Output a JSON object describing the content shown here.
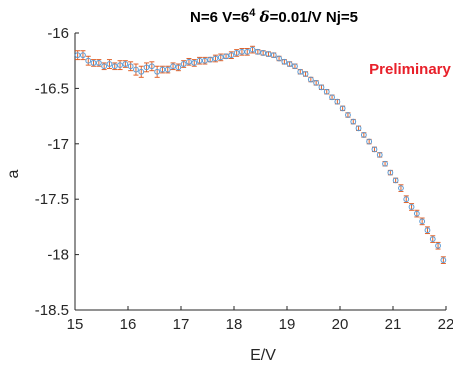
{
  "chart_data": {
    "type": "scatter",
    "title_parts": [
      "N=6 V=6",
      "4",
      " ",
      "δ",
      "=0.01/V Nj=5"
    ],
    "xlabel": "E/V",
    "ylabel": "a",
    "xlim": [
      15,
      22
    ],
    "ylim": [
      -18.5,
      -16
    ],
    "xticks": [
      "15",
      "16",
      "17",
      "18",
      "19",
      "20",
      "21",
      "22"
    ],
    "yticks": [
      "-16",
      "-16.5",
      "-17",
      "-17.5",
      "-18",
      "-18.5"
    ],
    "annotation": "Preliminary",
    "grid": false,
    "colors": {
      "marker_edge": "#5b9bd5",
      "errorbar": "#e0622a",
      "annotation": "#e8202a",
      "axis": "#262626"
    },
    "series": [
      {
        "x": [
          15.05,
          15.15,
          15.25,
          15.35,
          15.45,
          15.55,
          15.65,
          15.75,
          15.85,
          15.95,
          16.05,
          16.15,
          16.25,
          16.35,
          16.45,
          16.55,
          16.65,
          16.75,
          16.85,
          16.95,
          17.05,
          17.15,
          17.25,
          17.35,
          17.45,
          17.55,
          17.65,
          17.75,
          17.85,
          17.95,
          18.05,
          18.15,
          18.25,
          18.35,
          18.45,
          18.55,
          18.65,
          18.75,
          18.85,
          18.95,
          19.05,
          19.15,
          19.25,
          19.35,
          19.45,
          19.55,
          19.65,
          19.75,
          19.85,
          19.95,
          20.05,
          20.15,
          20.25,
          20.35,
          20.45,
          20.55,
          20.65,
          20.75,
          20.85,
          20.95,
          21.05,
          21.15,
          21.25,
          21.35,
          21.45,
          21.55,
          21.65,
          21.75,
          21.85,
          21.95
        ],
        "y": [
          -16.2,
          -16.2,
          -16.25,
          -16.27,
          -16.27,
          -16.3,
          -16.28,
          -16.3,
          -16.29,
          -16.28,
          -16.3,
          -16.33,
          -16.35,
          -16.31,
          -16.3,
          -16.35,
          -16.33,
          -16.33,
          -16.3,
          -16.31,
          -16.28,
          -16.26,
          -16.27,
          -16.25,
          -16.25,
          -16.24,
          -16.23,
          -16.22,
          -16.21,
          -16.2,
          -16.18,
          -16.17,
          -16.17,
          -16.15,
          -16.17,
          -16.18,
          -16.19,
          -16.2,
          -16.23,
          -16.26,
          -16.28,
          -16.3,
          -16.35,
          -16.37,
          -16.42,
          -16.45,
          -16.49,
          -16.53,
          -16.58,
          -16.62,
          -16.68,
          -16.74,
          -16.8,
          -16.86,
          -16.92,
          -16.98,
          -17.05,
          -17.1,
          -17.18,
          -17.26,
          -17.33,
          -17.4,
          -17.5,
          -17.57,
          -17.63,
          -17.7,
          -17.78,
          -17.86,
          -17.92,
          -18.05
        ],
        "err": [
          0.04,
          0.04,
          0.04,
          0.03,
          0.03,
          0.03,
          0.04,
          0.03,
          0.04,
          0.03,
          0.04,
          0.05,
          0.05,
          0.04,
          0.04,
          0.05,
          0.03,
          0.03,
          0.03,
          0.03,
          0.03,
          0.03,
          0.03,
          0.03,
          0.03,
          0.02,
          0.03,
          0.03,
          0.02,
          0.03,
          0.03,
          0.03,
          0.03,
          0.03,
          0.02,
          0.02,
          0.02,
          0.02,
          0.02,
          0.02,
          0.02,
          0.02,
          0.02,
          0.02,
          0.02,
          0.02,
          0.02,
          0.02,
          0.02,
          0.02,
          0.02,
          0.02,
          0.02,
          0.02,
          0.02,
          0.02,
          0.02,
          0.02,
          0.02,
          0.02,
          0.02,
          0.03,
          0.03,
          0.03,
          0.03,
          0.03,
          0.03,
          0.03,
          0.03,
          0.03
        ]
      }
    ]
  }
}
